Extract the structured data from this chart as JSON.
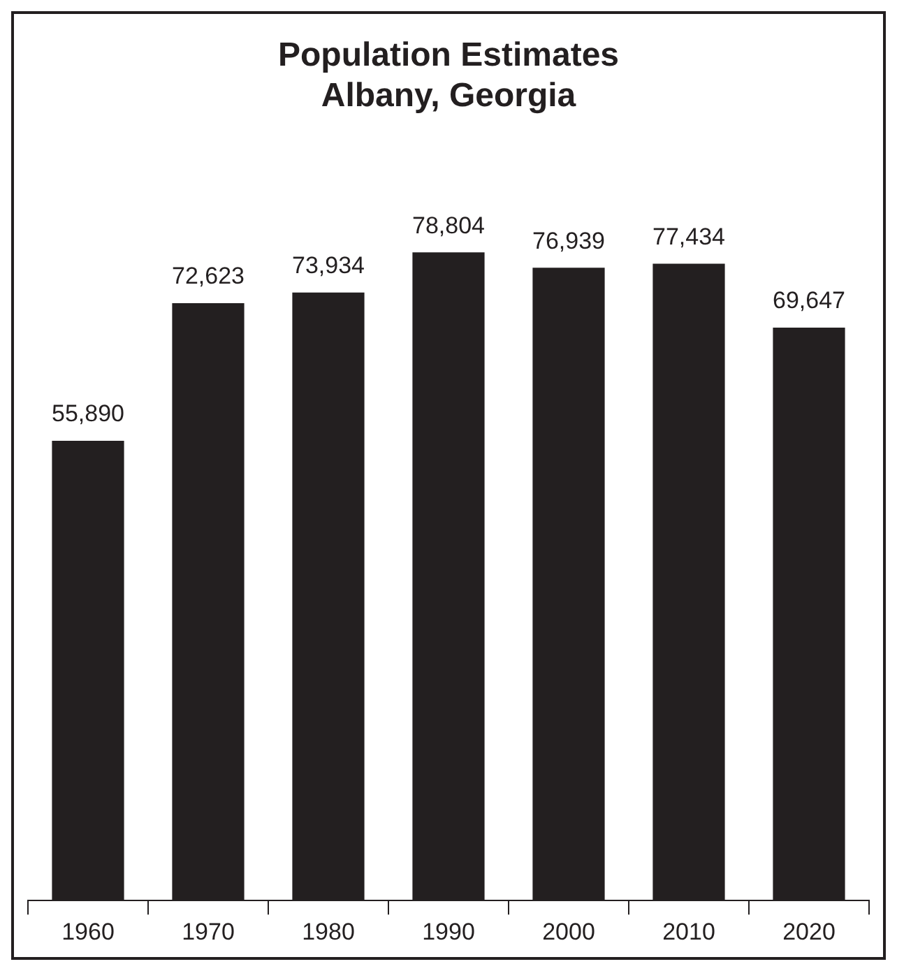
{
  "chart_data": {
    "type": "bar",
    "title": "Population Estimates\nAlbany, Georgia",
    "categories": [
      "1960",
      "1970",
      "1980",
      "1990",
      "2000",
      "2010",
      "2020"
    ],
    "values": [
      55890,
      72623,
      73934,
      78804,
      76939,
      77434,
      69647
    ],
    "value_labels": [
      "55,890",
      "72,623",
      "73,934",
      "78,804",
      "76,939",
      "77,434",
      "69,647"
    ],
    "color": "#231f20",
    "grid": false,
    "legend": false
  }
}
